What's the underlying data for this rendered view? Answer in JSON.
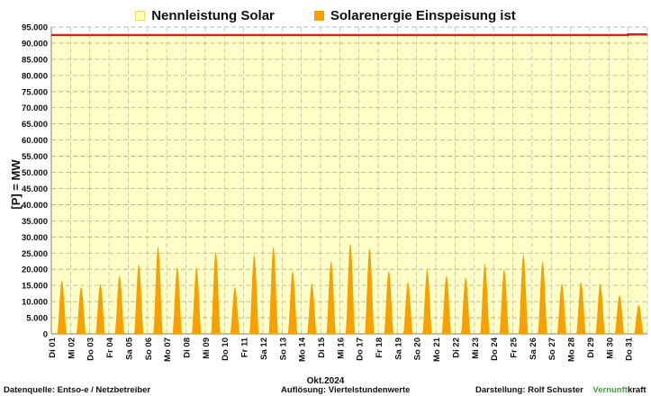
{
  "legend": {
    "capacity_label": "Nennleistung Solar",
    "feed_label": "Solarenergie Einspeisung ist"
  },
  "axis": {
    "ylabel": "[P]  =  MW",
    "month": "Okt.2024"
  },
  "footer": {
    "source_label": "Datenquelle:",
    "source_value": "Entso-e  / Netzbetreiber",
    "resolution_label": "Auflösung:",
    "resolution_value": "Viertelstundenwerte",
    "author_label": "Darstellung:",
    "author_value": "Rolf Schuster",
    "brand_part1": "Vernunft",
    "brand_part2": "kraft"
  },
  "colors": {
    "capacity_fill": "#ffffc8",
    "capacity_line": "#d81e1e",
    "feed_fill": "#f7a100",
    "grid": "#a9a9a9"
  },
  "chart_data": {
    "type": "area",
    "ylim": [
      0,
      95000
    ],
    "ytick_step": 5000,
    "y_tick_labels": [
      "0",
      "5.000",
      "10.000",
      "15.000",
      "20.000",
      "25.000",
      "30.000",
      "35.000",
      "40.000",
      "45.000",
      "50.000",
      "55.000",
      "60.000",
      "65.000",
      "70.000",
      "75.000",
      "80.000",
      "85.000",
      "90.000",
      "95.000"
    ],
    "grid": true,
    "legend_position": "top",
    "categories": [
      "Di 01",
      "Mi 02",
      "Do 03",
      "Fr 04",
      "Sa 05",
      "So 06",
      "Mo 07",
      "Di 08",
      "Mi 09",
      "Do 10",
      "Fr 11",
      "Sa 12",
      "So 13",
      "Mo 14",
      "Di 15",
      "Mi 16",
      "Do 17",
      "Fr 18",
      "Sa 19",
      "So 20",
      "Mo 21",
      "Di 22",
      "Mi 23",
      "Do 24",
      "Fr 25",
      "Sa 26",
      "So 27",
      "Mo 28",
      "Di 29",
      "Mi 30",
      "Do 31"
    ],
    "series": [
      {
        "name": "Nennleistung Solar",
        "values": [
          92500,
          92500,
          92500,
          92500,
          92500,
          92500,
          92500,
          92500,
          92500,
          92500,
          92500,
          92500,
          92500,
          92500,
          92500,
          92500,
          92500,
          92500,
          92500,
          92500,
          92500,
          92500,
          92500,
          92500,
          92500,
          92500,
          92500,
          92500,
          92500,
          92500,
          92700
        ]
      },
      {
        "name": "Solarenergie Einspeisung ist",
        "values": [
          16500,
          14500,
          15500,
          18000,
          21500,
          27000,
          20500,
          20500,
          25500,
          14500,
          24500,
          27000,
          19500,
          15500,
          22500,
          28000,
          26500,
          19500,
          16000,
          20000,
          18000,
          17500,
          21500,
          20000,
          24500,
          22500,
          15500,
          16000,
          15500,
          12000,
          9000
        ]
      }
    ]
  }
}
